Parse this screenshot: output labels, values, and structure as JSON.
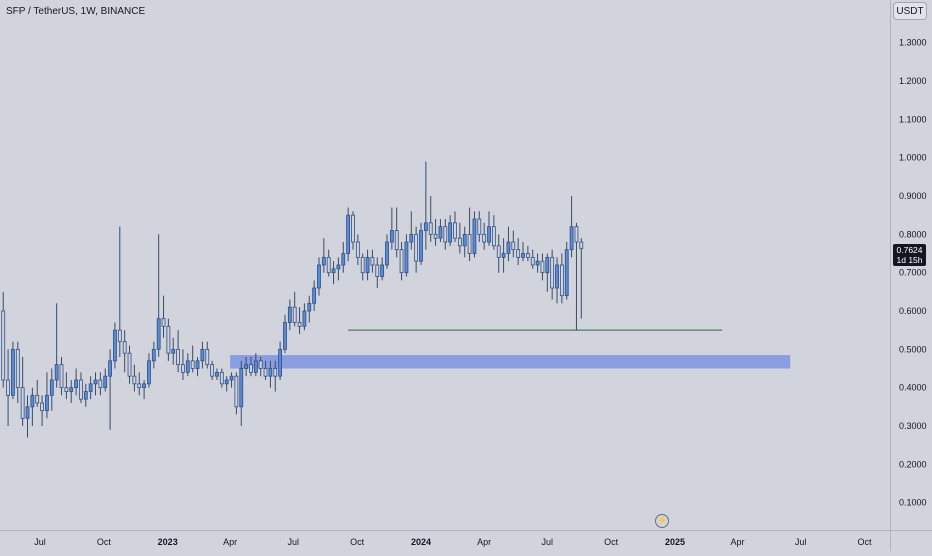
{
  "header": {
    "symbol_title": "SFP / TetherUS, 1W, BINANCE",
    "currency_label": "USDT"
  },
  "last_price": {
    "price_label": "0.7624",
    "countdown_label": "1d 15h"
  },
  "icons": {
    "replay": "lightning-icon"
  },
  "colors": {
    "background": "#d1d4dc",
    "candle_body": "#5b8bd6",
    "candle_outline": "#2f4f86",
    "wick": "#3b4a66",
    "support_zone": "#8a9de0",
    "support_line": "#2e6b3a",
    "text": "#131722"
  },
  "chart_data": {
    "type": "candlestick",
    "title": "SFP / TetherUS, 1W, BINANCE",
    "y_axis": {
      "ticks": [
        "0.1000",
        "0.2000",
        "0.3000",
        "0.4000",
        "0.5000",
        "0.6000",
        "0.7000",
        "0.8000",
        "0.9000",
        "1.0000",
        "1.1000",
        "1.2000",
        "1.3000"
      ],
      "ylim": [
        0.0,
        1.38
      ]
    },
    "x_axis": {
      "ticks": [
        {
          "label": "Jul",
          "date": "2022-07-01"
        },
        {
          "label": "Oct",
          "date": "2022-10-01"
        },
        {
          "label": "2023",
          "date": "2023-01-01"
        },
        {
          "label": "Apr",
          "date": "2023-04-01"
        },
        {
          "label": "Jul",
          "date": "2023-07-01"
        },
        {
          "label": "Oct",
          "date": "2023-10-01"
        },
        {
          "label": "2024",
          "date": "2024-01-01"
        },
        {
          "label": "Apr",
          "date": "2024-04-01"
        },
        {
          "label": "Jul",
          "date": "2024-07-01"
        },
        {
          "label": "Oct",
          "date": "2024-10-01"
        },
        {
          "label": "2025",
          "date": "2025-01-01"
        },
        {
          "label": "Apr",
          "date": "2025-04-01"
        },
        {
          "label": "Jul",
          "date": "2025-07-01"
        },
        {
          "label": "Oct",
          "date": "2025-10-01"
        }
      ]
    },
    "first_week": "2022-05-09",
    "candles": [
      [
        0.6,
        0.65,
        0.4,
        0.42
      ],
      [
        0.42,
        0.5,
        0.3,
        0.38
      ],
      [
        0.38,
        0.52,
        0.37,
        0.5
      ],
      [
        0.5,
        0.52,
        0.36,
        0.4
      ],
      [
        0.4,
        0.48,
        0.3,
        0.32
      ],
      [
        0.32,
        0.38,
        0.27,
        0.35
      ],
      [
        0.35,
        0.4,
        0.3,
        0.38
      ],
      [
        0.38,
        0.42,
        0.35,
        0.36
      ],
      [
        0.36,
        0.38,
        0.3,
        0.34
      ],
      [
        0.34,
        0.44,
        0.32,
        0.38
      ],
      [
        0.38,
        0.45,
        0.34,
        0.42
      ],
      [
        0.42,
        0.62,
        0.4,
        0.46
      ],
      [
        0.46,
        0.48,
        0.38,
        0.4
      ],
      [
        0.4,
        0.44,
        0.37,
        0.39
      ],
      [
        0.39,
        0.42,
        0.36,
        0.4
      ],
      [
        0.4,
        0.45,
        0.38,
        0.42
      ],
      [
        0.42,
        0.44,
        0.36,
        0.37
      ],
      [
        0.37,
        0.41,
        0.35,
        0.39
      ],
      [
        0.39,
        0.43,
        0.37,
        0.41
      ],
      [
        0.41,
        0.44,
        0.38,
        0.42
      ],
      [
        0.42,
        0.44,
        0.38,
        0.4
      ],
      [
        0.4,
        0.45,
        0.39,
        0.43
      ],
      [
        0.43,
        0.5,
        0.29,
        0.47
      ],
      [
        0.47,
        0.57,
        0.45,
        0.55
      ],
      [
        0.55,
        0.82,
        0.48,
        0.52
      ],
      [
        0.52,
        0.55,
        0.44,
        0.49
      ],
      [
        0.49,
        0.51,
        0.41,
        0.43
      ],
      [
        0.43,
        0.46,
        0.39,
        0.41
      ],
      [
        0.41,
        0.44,
        0.38,
        0.4
      ],
      [
        0.4,
        0.42,
        0.37,
        0.41
      ],
      [
        0.41,
        0.49,
        0.4,
        0.47
      ],
      [
        0.47,
        0.52,
        0.45,
        0.5
      ],
      [
        0.5,
        0.8,
        0.48,
        0.58
      ],
      [
        0.58,
        0.64,
        0.53,
        0.56
      ],
      [
        0.56,
        0.58,
        0.47,
        0.49
      ],
      [
        0.49,
        0.53,
        0.46,
        0.5
      ],
      [
        0.5,
        0.55,
        0.44,
        0.46
      ],
      [
        0.46,
        0.5,
        0.42,
        0.44
      ],
      [
        0.44,
        0.49,
        0.43,
        0.47
      ],
      [
        0.47,
        0.51,
        0.44,
        0.45
      ],
      [
        0.45,
        0.48,
        0.43,
        0.47
      ],
      [
        0.47,
        0.52,
        0.45,
        0.5
      ],
      [
        0.5,
        0.52,
        0.45,
        0.46
      ],
      [
        0.46,
        0.47,
        0.42,
        0.43
      ],
      [
        0.43,
        0.45,
        0.42,
        0.44
      ],
      [
        0.44,
        0.45,
        0.4,
        0.41
      ],
      [
        0.41,
        0.43,
        0.39,
        0.42
      ],
      [
        0.42,
        0.44,
        0.4,
        0.43
      ],
      [
        0.43,
        0.44,
        0.33,
        0.35
      ],
      [
        0.35,
        0.47,
        0.3,
        0.45
      ],
      [
        0.45,
        0.48,
        0.43,
        0.46
      ],
      [
        0.46,
        0.48,
        0.43,
        0.44
      ],
      [
        0.44,
        0.49,
        0.43,
        0.47
      ],
      [
        0.47,
        0.48,
        0.43,
        0.45
      ],
      [
        0.45,
        0.47,
        0.42,
        0.43
      ],
      [
        0.43,
        0.47,
        0.4,
        0.45
      ],
      [
        0.45,
        0.47,
        0.39,
        0.43
      ],
      [
        0.43,
        0.52,
        0.42,
        0.5
      ],
      [
        0.5,
        0.59,
        0.49,
        0.57
      ],
      [
        0.57,
        0.63,
        0.55,
        0.61
      ],
      [
        0.61,
        0.65,
        0.56,
        0.57
      ],
      [
        0.57,
        0.61,
        0.54,
        0.56
      ],
      [
        0.56,
        0.62,
        0.55,
        0.6
      ],
      [
        0.6,
        0.64,
        0.57,
        0.62
      ],
      [
        0.62,
        0.68,
        0.6,
        0.66
      ],
      [
        0.66,
        0.74,
        0.64,
        0.72
      ],
      [
        0.72,
        0.79,
        0.7,
        0.74
      ],
      [
        0.74,
        0.76,
        0.69,
        0.7
      ],
      [
        0.7,
        0.73,
        0.67,
        0.71
      ],
      [
        0.71,
        0.74,
        0.68,
        0.72
      ],
      [
        0.72,
        0.78,
        0.7,
        0.75
      ],
      [
        0.75,
        0.87,
        0.73,
        0.85
      ],
      [
        0.85,
        0.86,
        0.76,
        0.78
      ],
      [
        0.78,
        0.8,
        0.72,
        0.74
      ],
      [
        0.74,
        0.75,
        0.68,
        0.7
      ],
      [
        0.7,
        0.76,
        0.68,
        0.74
      ],
      [
        0.74,
        0.76,
        0.7,
        0.72
      ],
      [
        0.72,
        0.74,
        0.66,
        0.69
      ],
      [
        0.69,
        0.74,
        0.68,
        0.72
      ],
      [
        0.72,
        0.8,
        0.71,
        0.78
      ],
      [
        0.78,
        0.87,
        0.76,
        0.81
      ],
      [
        0.81,
        0.87,
        0.74,
        0.76
      ],
      [
        0.76,
        0.78,
        0.68,
        0.7
      ],
      [
        0.7,
        0.8,
        0.69,
        0.78
      ],
      [
        0.78,
        0.86,
        0.76,
        0.8
      ],
      [
        0.8,
        0.82,
        0.7,
        0.73
      ],
      [
        0.73,
        0.83,
        0.72,
        0.81
      ],
      [
        0.81,
        0.99,
        0.76,
        0.83
      ],
      [
        0.83,
        0.9,
        0.78,
        0.8
      ],
      [
        0.8,
        0.84,
        0.77,
        0.79
      ],
      [
        0.79,
        0.84,
        0.78,
        0.82
      ],
      [
        0.82,
        0.84,
        0.76,
        0.78
      ],
      [
        0.78,
        0.85,
        0.77,
        0.83
      ],
      [
        0.83,
        0.86,
        0.78,
        0.79
      ],
      [
        0.79,
        0.83,
        0.75,
        0.77
      ],
      [
        0.77,
        0.82,
        0.74,
        0.8
      ],
      [
        0.8,
        0.87,
        0.73,
        0.75
      ],
      [
        0.75,
        0.86,
        0.74,
        0.84
      ],
      [
        0.84,
        0.86,
        0.78,
        0.8
      ],
      [
        0.8,
        0.83,
        0.76,
        0.78
      ],
      [
        0.78,
        0.86,
        0.77,
        0.82
      ],
      [
        0.82,
        0.85,
        0.76,
        0.77
      ],
      [
        0.77,
        0.8,
        0.7,
        0.74
      ],
      [
        0.74,
        0.79,
        0.7,
        0.75
      ],
      [
        0.75,
        0.82,
        0.73,
        0.78
      ],
      [
        0.78,
        0.81,
        0.74,
        0.76
      ],
      [
        0.76,
        0.79,
        0.72,
        0.74
      ],
      [
        0.74,
        0.78,
        0.73,
        0.75
      ],
      [
        0.75,
        0.77,
        0.73,
        0.74
      ],
      [
        0.74,
        0.76,
        0.71,
        0.72
      ],
      [
        0.72,
        0.75,
        0.7,
        0.73
      ],
      [
        0.73,
        0.75,
        0.68,
        0.7
      ],
      [
        0.7,
        0.75,
        0.65,
        0.74
      ],
      [
        0.74,
        0.76,
        0.63,
        0.66
      ],
      [
        0.66,
        0.74,
        0.62,
        0.72
      ],
      [
        0.72,
        0.75,
        0.62,
        0.64
      ],
      [
        0.64,
        0.78,
        0.63,
        0.76
      ],
      [
        0.76,
        0.9,
        0.74,
        0.82
      ],
      [
        0.82,
        0.83,
        0.55,
        0.78
      ],
      [
        0.78,
        0.79,
        0.58,
        0.7624
      ]
    ],
    "annotations": {
      "support_zone": {
        "y_from": 0.45,
        "y_to": 0.485,
        "x_from": "2023-04-01",
        "x_to": "2025-06-16"
      },
      "support_line": {
        "y": 0.55,
        "x_from": "2023-09-18",
        "x_to": "2025-03-10"
      }
    },
    "grid": false,
    "legend": "none"
  }
}
